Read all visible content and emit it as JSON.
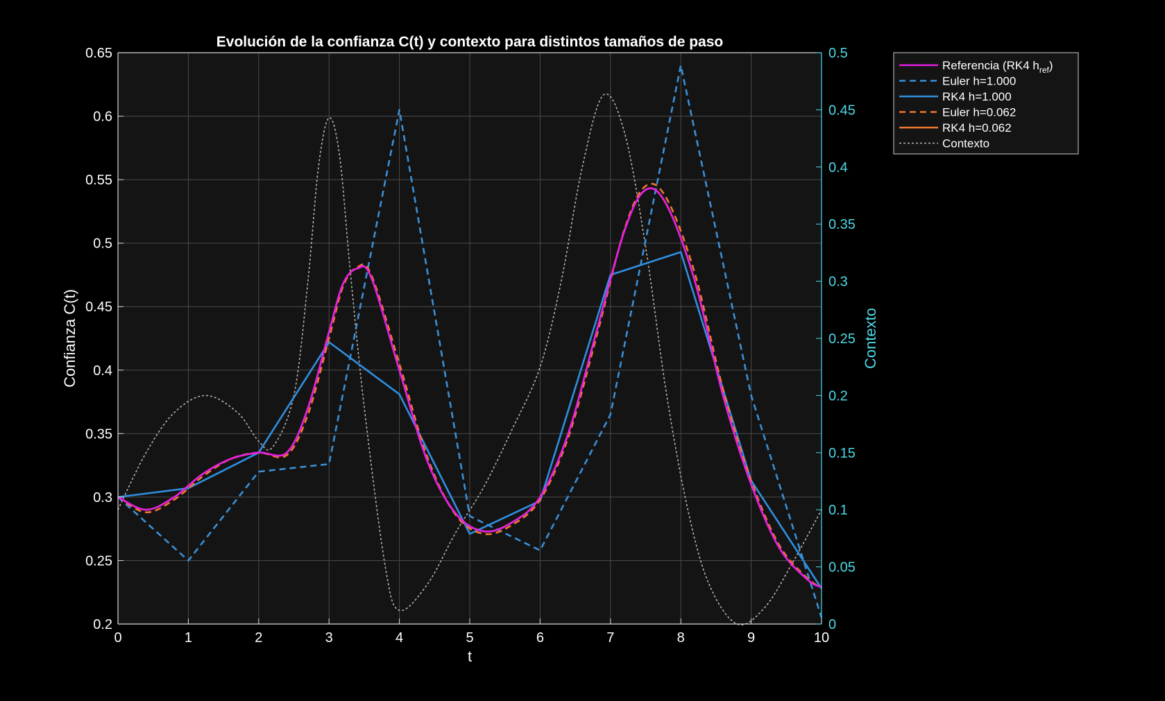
{
  "chart_data": {
    "type": "line",
    "title": "Evolución de la confianza C(t) y contexto para distintos tamaños de paso",
    "xlabel": "t",
    "ylabel": "Confianza C(t)",
    "y2label": "Contexto",
    "xlim": [
      0,
      10
    ],
    "ylim": [
      0.2,
      0.65
    ],
    "y2lim": [
      0,
      0.5
    ],
    "xticks": [
      "0",
      "1",
      "2",
      "3",
      "4",
      "5",
      "6",
      "7",
      "8",
      "9",
      "10"
    ],
    "yticks": [
      "0.2",
      "0.25",
      "0.3",
      "0.35",
      "0.4",
      "0.45",
      "0.5",
      "0.55",
      "0.6",
      "0.65"
    ],
    "y2ticks": [
      "0",
      "0.05",
      "0.1",
      "0.15",
      "0.2",
      "0.25",
      "0.3",
      "0.35",
      "0.4",
      "0.45",
      "0.5"
    ],
    "grid": true,
    "legend_position": "outside top-right",
    "colors": {
      "background": "#000000",
      "axes_bg": "#141414",
      "grid": "#4a4a4a",
      "axis": "#d9d9d9",
      "axis2": "#4dd9e6",
      "text": "#ffffff"
    },
    "series": [
      {
        "name": "Referencia  (RK4  h",
        "name_sub": "ref",
        "name_end": ")",
        "color": "#e61ee6",
        "dash": "solid",
        "axis": "left",
        "x": [
          0,
          0.4,
          0.8,
          1.2,
          1.6,
          2.0,
          2.4,
          2.7,
          3.0,
          3.2,
          3.4,
          3.6,
          4.0,
          4.4,
          4.8,
          5.2,
          5.6,
          6.0,
          6.4,
          6.8,
          7.2,
          7.5,
          7.8,
          8.2,
          8.6,
          9.0,
          9.4,
          9.8,
          10.0
        ],
        "y": [
          0.3,
          0.29,
          0.3,
          0.318,
          0.33,
          0.335,
          0.335,
          0.37,
          0.43,
          0.468,
          0.48,
          0.473,
          0.4,
          0.328,
          0.287,
          0.273,
          0.28,
          0.3,
          0.35,
          0.43,
          0.51,
          0.542,
          0.53,
          0.47,
          0.38,
          0.31,
          0.26,
          0.235,
          0.229
        ]
      },
      {
        "name": "Euler h=1.000",
        "color": "#3a8fd6",
        "dash": "dashed",
        "axis": "left",
        "x": [
          0,
          1,
          2,
          3,
          4,
          5,
          6,
          7,
          8,
          9,
          10
        ],
        "y": [
          0.3,
          0.25,
          0.32,
          0.326,
          0.605,
          0.285,
          0.258,
          0.365,
          0.64,
          0.38,
          0.205
        ]
      },
      {
        "name": "RK4 h=1.000",
        "color": "#2f8fdf",
        "dash": "solid",
        "axis": "left",
        "x": [
          0,
          1,
          2,
          3,
          4,
          5,
          6,
          7,
          8,
          9,
          10
        ],
        "y": [
          0.3,
          0.307,
          0.335,
          0.422,
          0.381,
          0.271,
          0.297,
          0.475,
          0.493,
          0.313,
          0.228
        ]
      },
      {
        "name": "Euler h=0.062",
        "color": "#f0782e",
        "dash": "dashed",
        "axis": "left",
        "x": [
          0,
          0.4,
          0.8,
          1.2,
          1.6,
          2.0,
          2.4,
          2.7,
          3.0,
          3.2,
          3.4,
          3.6,
          4.0,
          4.4,
          4.8,
          5.2,
          5.6,
          6.0,
          6.4,
          6.8,
          7.2,
          7.5,
          7.8,
          8.2,
          8.6,
          9.0,
          9.4,
          9.8,
          10.0
        ],
        "y": [
          0.3,
          0.288,
          0.298,
          0.316,
          0.33,
          0.335,
          0.333,
          0.365,
          0.425,
          0.466,
          0.481,
          0.475,
          0.405,
          0.331,
          0.286,
          0.271,
          0.278,
          0.298,
          0.347,
          0.426,
          0.511,
          0.545,
          0.535,
          0.476,
          0.385,
          0.313,
          0.262,
          0.236,
          0.229
        ]
      },
      {
        "name": "RK4 h=0.062",
        "color": "#f0782e",
        "dash": "solid",
        "axis": "left",
        "x": [
          0,
          0.4,
          0.8,
          1.2,
          1.6,
          2.0,
          2.4,
          2.7,
          3.0,
          3.2,
          3.4,
          3.6,
          4.0,
          4.4,
          4.8,
          5.2,
          5.6,
          6.0,
          6.4,
          6.8,
          7.2,
          7.5,
          7.8,
          8.2,
          8.6,
          9.0,
          9.4,
          9.8,
          10.0
        ],
        "y": [
          0.3,
          0.29,
          0.3,
          0.318,
          0.33,
          0.335,
          0.335,
          0.37,
          0.43,
          0.468,
          0.48,
          0.473,
          0.4,
          0.328,
          0.287,
          0.273,
          0.28,
          0.3,
          0.35,
          0.43,
          0.51,
          0.542,
          0.53,
          0.47,
          0.38,
          0.31,
          0.26,
          0.235,
          0.229
        ]
      },
      {
        "name": "Contexto",
        "color": "#b4b4b4",
        "dash": "dotted",
        "axis": "right",
        "x": [
          0,
          0.4,
          0.8,
          1.25,
          1.7,
          2.0,
          2.2,
          2.5,
          2.7,
          2.85,
          3.0,
          3.15,
          3.3,
          3.5,
          3.8,
          4.0,
          4.4,
          4.8,
          5.2,
          5.6,
          6.0,
          6.3,
          6.6,
          6.9,
          7.2,
          7.5,
          7.8,
          8.1,
          8.4,
          8.8,
          9.2,
          9.6,
          10.0
        ],
        "y": [
          0.1,
          0.15,
          0.185,
          0.2,
          0.185,
          0.16,
          0.155,
          0.2,
          0.3,
          0.4,
          0.443,
          0.41,
          0.31,
          0.19,
          0.05,
          0.012,
          0.035,
          0.08,
          0.12,
          0.17,
          0.225,
          0.3,
          0.4,
          0.463,
          0.43,
          0.33,
          0.2,
          0.1,
          0.035,
          0.0,
          0.015,
          0.055,
          0.1
        ]
      }
    ]
  }
}
